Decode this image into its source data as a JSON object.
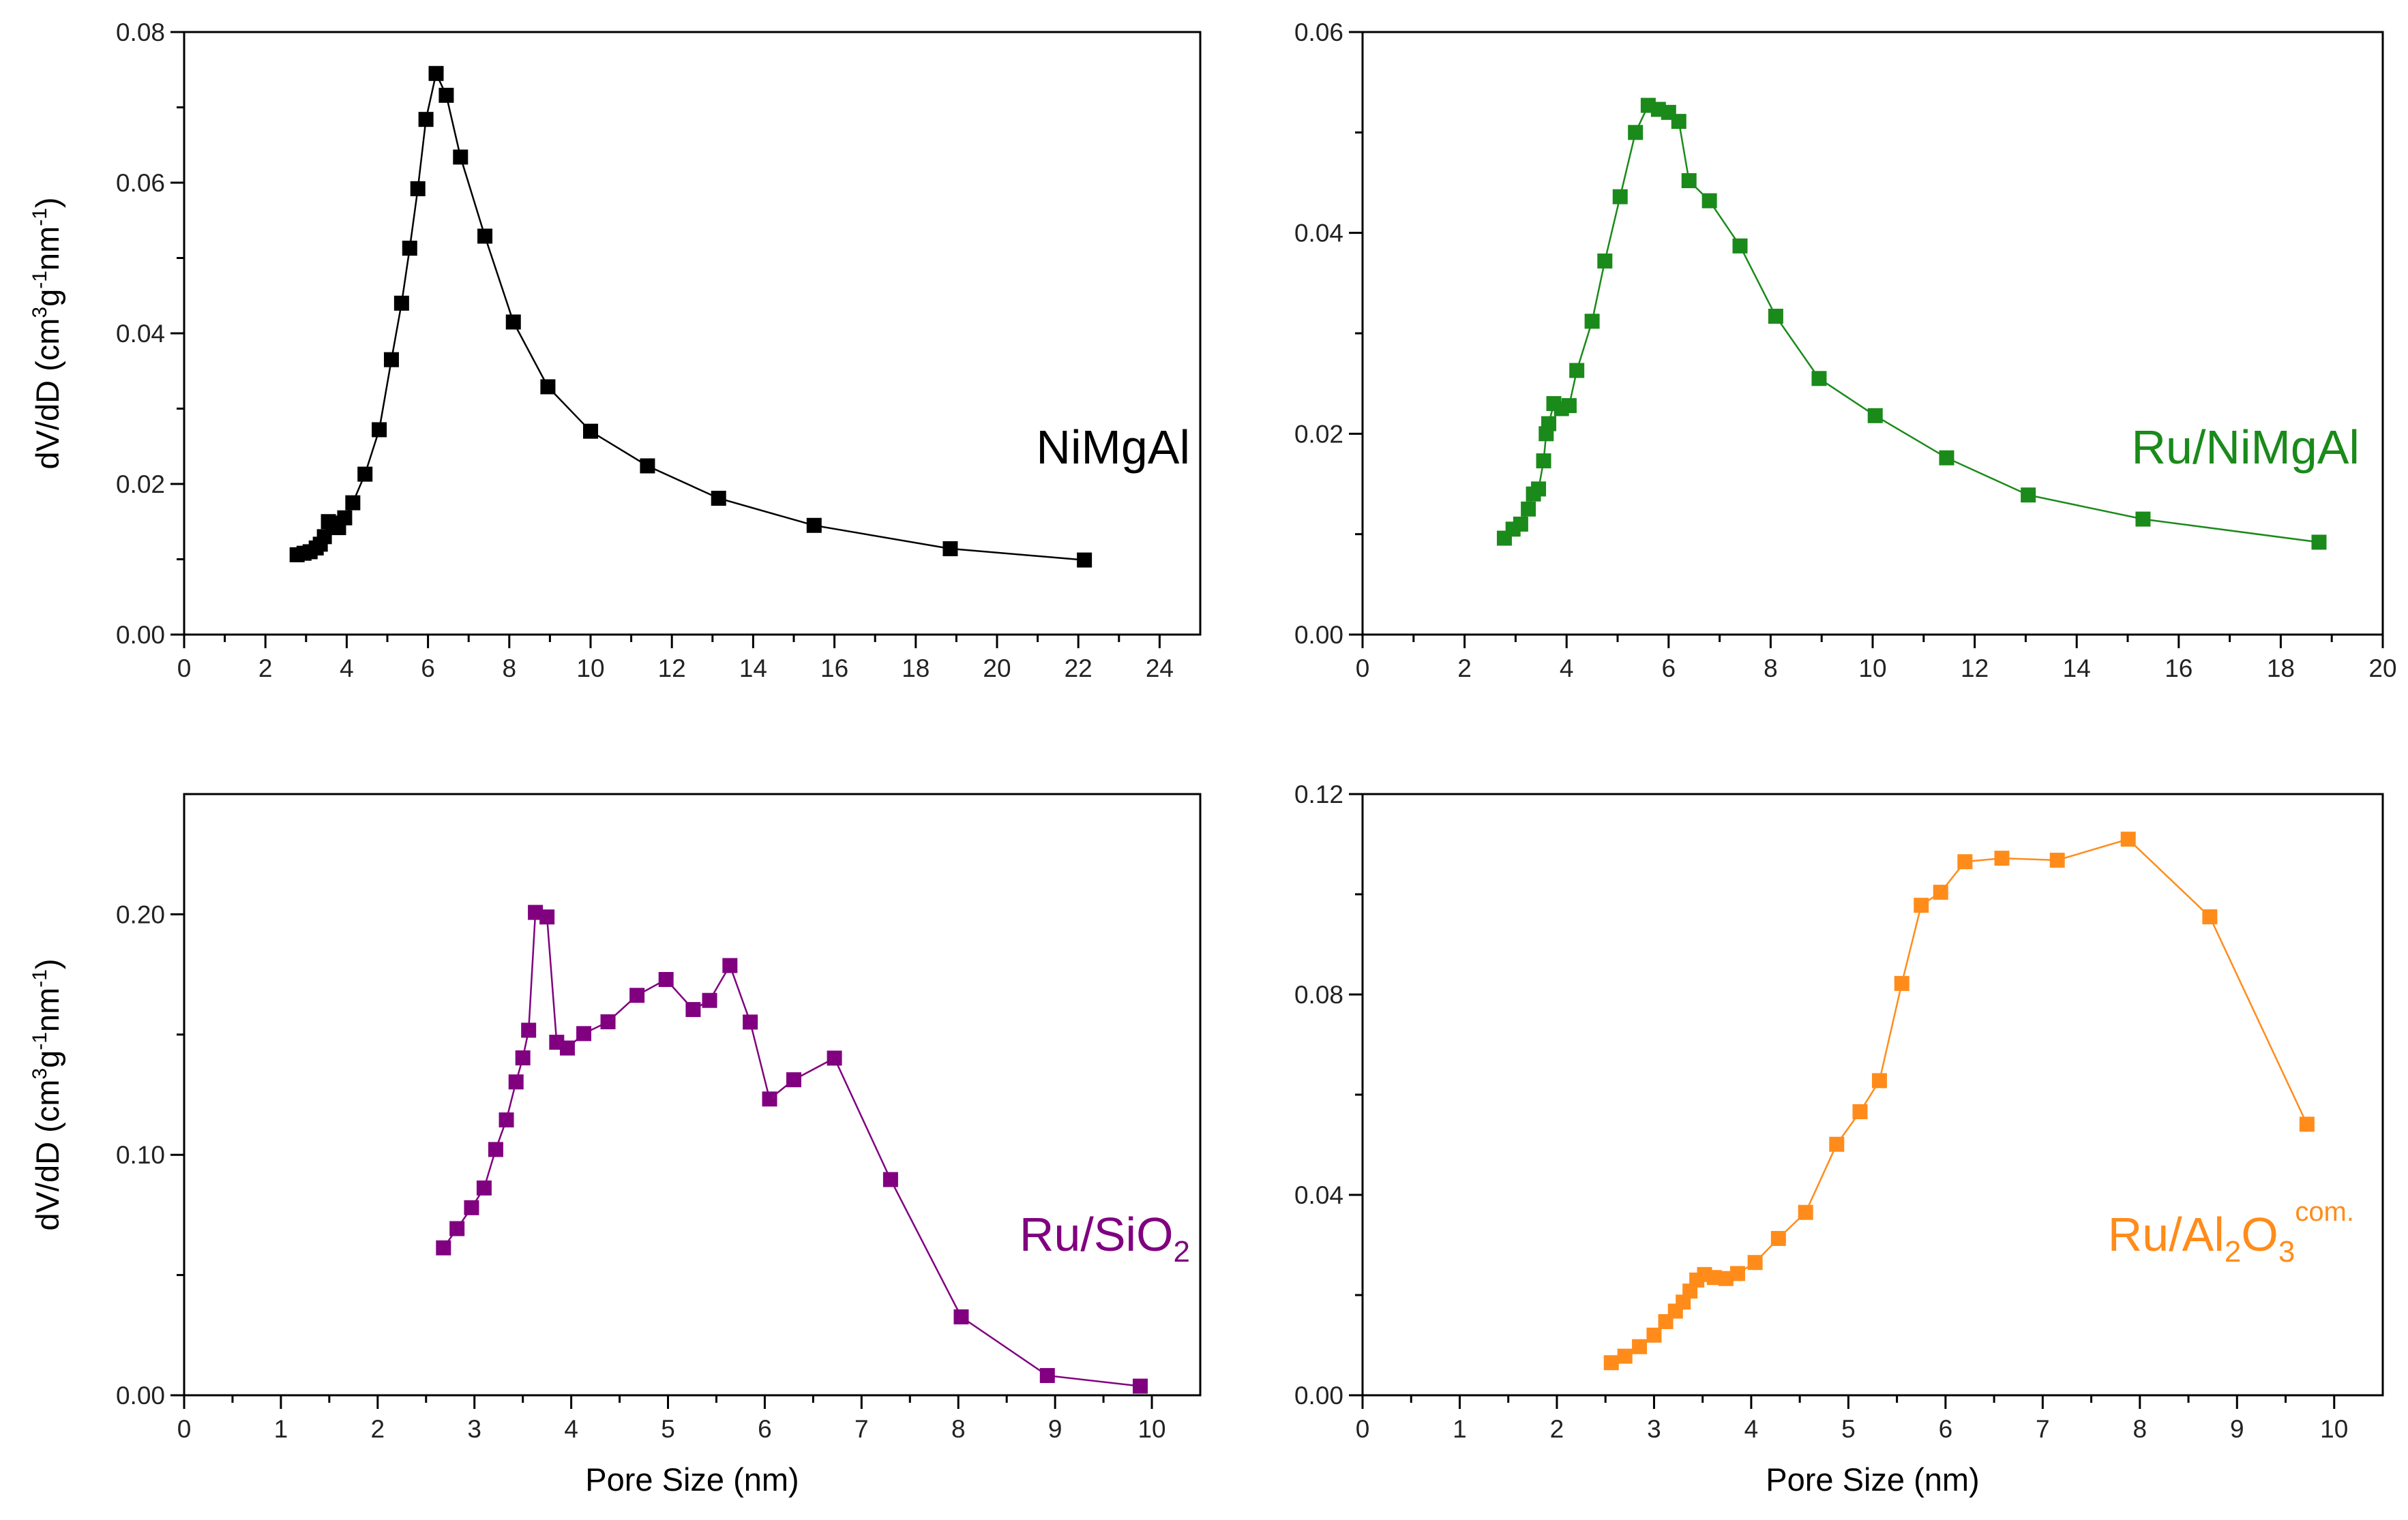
{
  "chart_data": [
    {
      "type": "line",
      "name": "panel-nimgal",
      "label": "NiMgAl",
      "sup": "",
      "sub": "",
      "color": "#000000",
      "xlabel": "",
      "ylabel": "dV/dD (cm3g-1nm-1)",
      "xlim": [
        0,
        25
      ],
      "ylim": [
        0,
        0.08
      ],
      "xticks": [
        0,
        2,
        4,
        6,
        8,
        10,
        12,
        14,
        16,
        18,
        20,
        22,
        24
      ],
      "xtick_labels": [
        "0",
        "2",
        "4",
        "6",
        "8",
        "10",
        "12",
        "14",
        "16",
        "18",
        "20",
        "22",
        "24"
      ],
      "yticks": [
        0,
        0.02,
        0.04,
        0.06,
        0.08
      ],
      "ytick_labels": [
        "0.00",
        "0.02",
        "0.04",
        "0.06",
        "0.08"
      ],
      "series": [
        {
          "name": "NiMgAl",
          "x": [
            2.78,
            2.95,
            3.1,
            3.25,
            3.35,
            3.45,
            3.55,
            3.65,
            3.8,
            3.95,
            4.15,
            4.45,
            4.8,
            5.1,
            5.35,
            5.55,
            5.75,
            5.95,
            6.2,
            6.45,
            6.8,
            7.4,
            8.1,
            8.95,
            10.0,
            11.4,
            13.15,
            15.5,
            18.85,
            22.15
          ],
          "y": [
            0.0106,
            0.0108,
            0.011,
            0.0115,
            0.012,
            0.013,
            0.015,
            0.0148,
            0.0142,
            0.0155,
            0.0175,
            0.0213,
            0.0272,
            0.0365,
            0.044,
            0.0513,
            0.0592,
            0.0684,
            0.0745,
            0.0716,
            0.0634,
            0.0529,
            0.0415,
            0.0329,
            0.027,
            0.0224,
            0.0181,
            0.0145,
            0.0114,
            0.0099
          ]
        }
      ]
    },
    {
      "type": "line",
      "name": "panel-ru-nimgal",
      "label": "Ru/NiMgAl",
      "sup": "",
      "sub": "",
      "color": "#1a8a1a",
      "xlabel": "",
      "ylabel": "",
      "xlim": [
        0,
        20
      ],
      "ylim": [
        0,
        0.06
      ],
      "xticks": [
        0,
        2,
        4,
        6,
        8,
        10,
        12,
        14,
        16,
        18,
        20
      ],
      "xtick_labels": [
        "0",
        "2",
        "4",
        "6",
        "8",
        "10",
        "12",
        "14",
        "16",
        "18",
        "20"
      ],
      "yticks": [
        0,
        0.02,
        0.04,
        0.06
      ],
      "ytick_labels": [
        "0.00",
        "0.02",
        "0.04",
        "0.06"
      ],
      "series": [
        {
          "name": "Ru/NiMgAl",
          "x": [
            2.78,
            2.95,
            3.1,
            3.25,
            3.35,
            3.45,
            3.55,
            3.6,
            3.65,
            3.75,
            3.9,
            4.05,
            4.2,
            4.5,
            4.75,
            5.05,
            5.35,
            5.6,
            5.8,
            6.0,
            6.2,
            6.4,
            6.8,
            7.4,
            8.1,
            8.95,
            10.05,
            11.45,
            13.05,
            15.3,
            18.75
          ],
          "y": [
            0.0096,
            0.0105,
            0.011,
            0.0125,
            0.014,
            0.0145,
            0.0173,
            0.02,
            0.021,
            0.023,
            0.0225,
            0.0228,
            0.0263,
            0.0312,
            0.0372,
            0.0436,
            0.05,
            0.0527,
            0.0523,
            0.052,
            0.0511,
            0.0452,
            0.0432,
            0.0387,
            0.0317,
            0.0255,
            0.0218,
            0.0176,
            0.0139,
            0.0115,
            0.0092
          ]
        }
      ]
    },
    {
      "type": "line",
      "name": "panel-ru-sio2",
      "label": "Ru/SiO",
      "sup": "",
      "sub": "2",
      "color": "#800080",
      "xlabel": "Pore Size (nm)",
      "ylabel": "dV/dD (cm3g-1nm-1)",
      "xlim": [
        0,
        10.5
      ],
      "ylim": [
        0,
        0.25
      ],
      "xticks": [
        0,
        1,
        2,
        3,
        4,
        5,
        6,
        7,
        8,
        9,
        10
      ],
      "xtick_labels": [
        "0",
        "1",
        "2",
        "3",
        "4",
        "5",
        "6",
        "7",
        "8",
        "9",
        "10"
      ],
      "yticks": [
        0,
        0.1,
        0.2
      ],
      "ytick_labels": [
        "0.00",
        "0.10",
        "0.20"
      ],
      "series": [
        {
          "name": "Ru/SiO2",
          "x": [
            2.68,
            2.82,
            2.97,
            3.1,
            3.22,
            3.33,
            3.43,
            3.5,
            3.56,
            3.63,
            3.75,
            3.85,
            3.96,
            4.13,
            4.38,
            4.68,
            4.98,
            5.26,
            5.43,
            5.64,
            5.85,
            6.05,
            6.3,
            6.72,
            7.3,
            8.03,
            8.92,
            9.88
          ],
          "y": [
            0.0613,
            0.0693,
            0.078,
            0.0862,
            0.1022,
            0.1145,
            0.1303,
            0.1403,
            0.1518,
            0.2008,
            0.1989,
            0.1468,
            0.1444,
            0.1504,
            0.1553,
            0.1663,
            0.1729,
            0.1604,
            0.1642,
            0.1787,
            0.1552,
            0.1232,
            0.1312,
            0.1402,
            0.0897,
            0.0326,
            0.0082,
            0.0038
          ]
        }
      ]
    },
    {
      "type": "line",
      "name": "panel-ru-al2o3",
      "label": "Ru/Al",
      "sup": "com.",
      "sub": "2",
      "mid": "O",
      "sub2": "3",
      "color": "#ff8c1a",
      "xlabel": "Pore Size (nm)",
      "ylabel": "",
      "xlim": [
        0,
        10.5
      ],
      "ylim": [
        0,
        0.12
      ],
      "xticks": [
        0,
        1,
        2,
        3,
        4,
        5,
        6,
        7,
        8,
        9,
        10
      ],
      "xtick_labels": [
        "0",
        "1",
        "2",
        "3",
        "4",
        "5",
        "6",
        "7",
        "8",
        "9",
        "10"
      ],
      "yticks": [
        0,
        0.04,
        0.08,
        0.12
      ],
      "ytick_labels": [
        "0.00",
        "0.04",
        "0.08",
        "0.12"
      ],
      "series": [
        {
          "name": "Ru/Al2O3 com.",
          "x": [
            2.56,
            2.7,
            2.85,
            3.0,
            3.12,
            3.22,
            3.3,
            3.37,
            3.44,
            3.52,
            3.62,
            3.74,
            3.86,
            4.04,
            4.28,
            4.56,
            4.88,
            5.12,
            5.32,
            5.55,
            5.75,
            5.95,
            6.2,
            6.58,
            7.15,
            7.88,
            8.72,
            9.72
          ],
          "y": [
            0.0065,
            0.0078,
            0.0097,
            0.012,
            0.0147,
            0.0168,
            0.0186,
            0.0208,
            0.023,
            0.0241,
            0.0235,
            0.0233,
            0.0243,
            0.0265,
            0.0313,
            0.0365,
            0.0501,
            0.0566,
            0.0628,
            0.0822,
            0.0978,
            0.1004,
            0.1065,
            0.1072,
            0.1068,
            0.111,
            0.0955,
            0.0541
          ]
        }
      ]
    }
  ]
}
